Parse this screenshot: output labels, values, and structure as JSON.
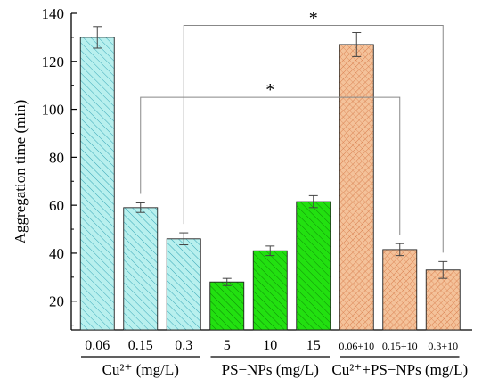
{
  "chart_data": {
    "type": "bar",
    "ylabel": "Aggregation time (min)",
    "ylim": [
      8,
      140
    ],
    "yticks": [
      20,
      40,
      60,
      80,
      100,
      120,
      140
    ],
    "categories": [
      "0.06",
      "0.15",
      "0.3",
      "5",
      "10",
      "15",
      "0.06+10",
      "0.15+10",
      "0.3+10"
    ],
    "values": [
      130,
      59,
      46,
      28,
      41,
      61.5,
      127,
      41.5,
      33
    ],
    "errors": [
      4.5,
      2,
      2.5,
      1.5,
      2,
      2.5,
      5,
      2.5,
      3.5
    ],
    "groups": [
      {
        "label": "Cu²⁺ (mg/L)",
        "start": 0,
        "end": 2,
        "color": "#b8f0ee",
        "hatch": "#3aa8b8"
      },
      {
        "label": "PS−NPs (mg/L)",
        "start": 3,
        "end": 5,
        "color": "#22e010",
        "hatch": "#0f8a08"
      },
      {
        "label": "Cu²⁺+PS−NPs (mg/L)",
        "start": 6,
        "end": 8,
        "color": "#f4c29a",
        "hatch": "#d98050"
      }
    ],
    "significance": [
      {
        "from": 2,
        "to": 8,
        "label": "*",
        "y": 135
      },
      {
        "from": 1,
        "to": 7,
        "label": "*",
        "y": 105
      }
    ]
  }
}
